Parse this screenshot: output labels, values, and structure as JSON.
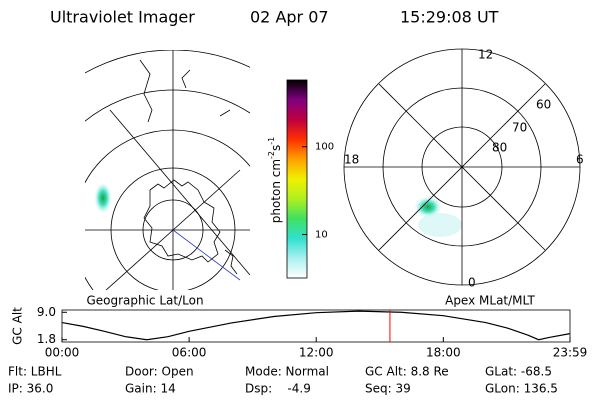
{
  "header": {
    "title": "Ultraviolet Imager",
    "date": "02 Apr 07",
    "time": "15:29:08 UT"
  },
  "geographic_map": {
    "label": "Geographic Lat/Lon"
  },
  "colorbar": {
    "label": "photon cm",
    "label_exp1": "-2",
    "label_unit2": "s",
    "label_exp2": "-1",
    "log_scale": true,
    "lim": [
      3.2,
      575
    ],
    "ticks": [
      10,
      100
    ],
    "colors": [
      "#ffffff",
      "#aaf0f0",
      "#30e0d0",
      "#40e060",
      "#b0f020",
      "#f0f000",
      "#ffa000",
      "#ff3000",
      "#c00040",
      "#800080",
      "#000000"
    ]
  },
  "polar_map": {
    "label": "Apex MLat/MLT",
    "mlt_labels": {
      "top": "12",
      "left": "18",
      "right": "6",
      "bottom": "0"
    },
    "lat_labels": [
      "60",
      "70",
      "80"
    ]
  },
  "chart_data": {
    "type": "line",
    "ylabel": "GC Alt",
    "x": [
      0,
      1,
      2,
      3,
      4,
      5,
      6,
      8,
      10,
      12,
      14,
      16,
      18,
      20,
      21,
      22,
      22.5,
      23,
      23.98
    ],
    "values": [
      6.3,
      5.3,
      4.0,
      2.6,
      1.8,
      2.6,
      4.0,
      6.2,
      7.9,
      8.9,
      9.3,
      9.0,
      8.1,
      6.3,
      4.9,
      3.0,
      1.8,
      2.4,
      3.4
    ],
    "xlim": [
      0,
      23.98
    ],
    "xticks": [
      {
        "value": 0,
        "label": "00:00"
      },
      {
        "value": 6,
        "label": "06:00"
      },
      {
        "value": 12,
        "label": "12:00"
      },
      {
        "value": 18,
        "label": "18:00"
      },
      {
        "value": 23.98,
        "label": "23:59"
      }
    ],
    "ylim": [
      1.2,
      9.6
    ],
    "yticks": [
      {
        "value": 9,
        "label": "9.0"
      },
      {
        "value": 1.8,
        "label": "1.8"
      }
    ],
    "color": "#000000",
    "marker": {
      "x": 15.48,
      "color": "#ff0000"
    }
  },
  "status": [
    [
      "Flt: LBHL",
      "IP: 36.0"
    ],
    [
      "Door: Open",
      "Gain: 14"
    ],
    [
      "Mode: Normal",
      "Dsp:    -4.9"
    ],
    [
      "GC Alt: 8.8 Re",
      "Seq: 39"
    ],
    [
      "GLat: -68.5",
      "GLon: 136.5"
    ]
  ]
}
